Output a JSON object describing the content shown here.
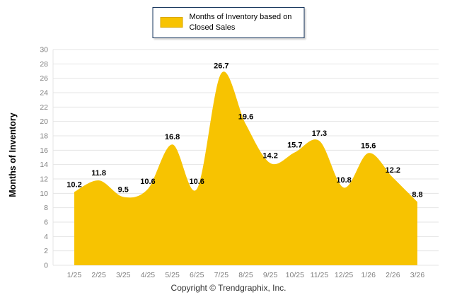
{
  "chart_data": {
    "type": "area",
    "categories": [
      "1/25",
      "2/25",
      "3/25",
      "4/25",
      "5/25",
      "6/25",
      "7/25",
      "8/25",
      "9/25",
      "10/25",
      "11/25",
      "12/25",
      "1/26",
      "2/26",
      "3/26"
    ],
    "values": [
      10.2,
      11.8,
      9.5,
      10.6,
      16.8,
      10.6,
      26.7,
      19.6,
      14.2,
      15.7,
      17.3,
      10.8,
      15.6,
      12.2,
      8.8
    ],
    "title": "Months of Inventory based on Closed Sales",
    "xlabel": "",
    "ylabel": "Months of Inventory",
    "ylim": [
      0,
      30
    ],
    "ytick_step": 2,
    "grid": true,
    "legend_position": "top",
    "colors": {
      "area_fill": "#F7C301",
      "legend_border": "#17365D",
      "grid_line": "#E4E4E4",
      "axis_text": "#7F7F7F",
      "label_text": "#000000"
    }
  },
  "legend": {
    "label": "Months of Inventory based on Closed Sales"
  },
  "footer": {
    "text": "Copyright © Trendgraphix, Inc."
  }
}
